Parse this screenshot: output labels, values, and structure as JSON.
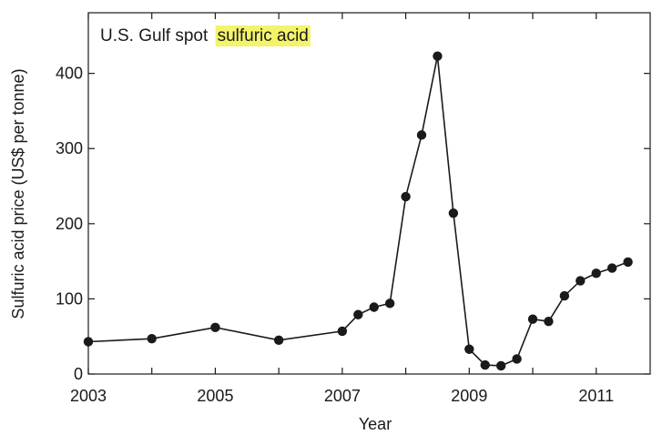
{
  "chart_data": {
    "type": "line",
    "title_prefix": "U.S. Gulf spot",
    "title_highlight": "sulfuric acid",
    "highlight_color": "#f4f36a",
    "xlabel": "Year",
    "ylabel": "Sulfuric acid price (US$ per tonne)",
    "xlim": [
      2003,
      2011.85
    ],
    "ylim": [
      0,
      425
    ],
    "x_ticks": [
      2003,
      2005,
      2007,
      2009,
      2011
    ],
    "x_minor_ticks": [
      2004,
      2006,
      2008,
      2010
    ],
    "y_ticks": [
      0,
      100,
      200,
      300,
      400
    ],
    "grid": false,
    "line_color": "#1a1a1a",
    "series": [
      {
        "points": [
          {
            "x": 2003.0,
            "y": 43
          },
          {
            "x": 2004.0,
            "y": 47
          },
          {
            "x": 2005.0,
            "y": 62
          },
          {
            "x": 2006.0,
            "y": 45
          },
          {
            "x": 2007.0,
            "y": 57
          },
          {
            "x": 2007.25,
            "y": 79
          },
          {
            "x": 2007.5,
            "y": 89
          },
          {
            "x": 2007.75,
            "y": 94
          },
          {
            "x": 2008.0,
            "y": 236
          },
          {
            "x": 2008.25,
            "y": 318
          },
          {
            "x": 2008.5,
            "y": 423
          },
          {
            "x": 2008.75,
            "y": 214
          },
          {
            "x": 2009.0,
            "y": 33
          },
          {
            "x": 2009.25,
            "y": 12
          },
          {
            "x": 2009.5,
            "y": 11
          },
          {
            "x": 2009.75,
            "y": 20
          },
          {
            "x": 2010.0,
            "y": 73
          },
          {
            "x": 2010.25,
            "y": 70
          },
          {
            "x": 2010.5,
            "y": 104
          },
          {
            "x": 2010.75,
            "y": 124
          },
          {
            "x": 2011.0,
            "y": 134
          },
          {
            "x": 2011.25,
            "y": 141
          },
          {
            "x": 2011.5,
            "y": 149
          }
        ]
      }
    ]
  }
}
